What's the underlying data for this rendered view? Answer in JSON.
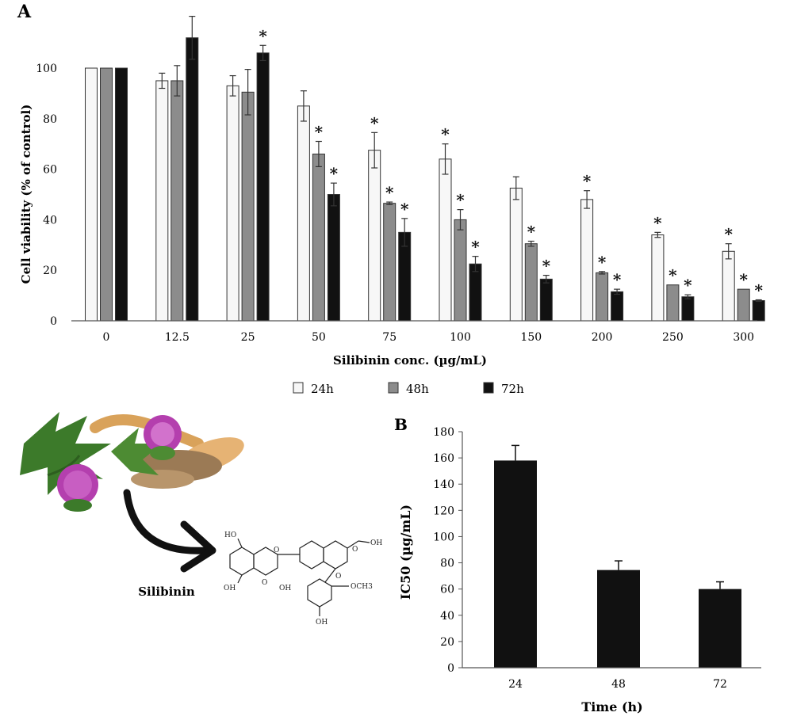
{
  "panels": {
    "a_label": "A",
    "b_label": "B"
  },
  "colors": {
    "h24": "#f7f7f7",
    "h48": "#8c8c8c",
    "h72": "#111111",
    "axis": "#555555",
    "star": "#111111"
  },
  "chart_data": [
    {
      "id": "A",
      "type": "bar",
      "title": "",
      "xlabel": "Silibinin conc. (µg/mL)",
      "ylabel": "Cell viability (% of control)",
      "ylim": [
        0,
        120
      ],
      "yticks": [
        0,
        20,
        40,
        60,
        80,
        100
      ],
      "categories": [
        "0",
        "12.5",
        "25",
        "50",
        "75",
        "100",
        "150",
        "200",
        "250",
        "300"
      ],
      "grid": false,
      "legend_position": "bottom-center",
      "annotation_symbol": "*",
      "series": [
        {
          "name": "24h",
          "color": "#f7f7f7",
          "values": [
            100,
            95,
            93,
            85,
            67.5,
            64,
            52.5,
            48,
            34,
            27.5
          ],
          "errors": [
            0,
            3,
            4,
            6,
            7,
            6,
            4.5,
            3.5,
            1,
            3
          ],
          "significant": [
            false,
            false,
            false,
            false,
            true,
            true,
            false,
            true,
            true,
            true
          ]
        },
        {
          "name": "48h",
          "color": "#8c8c8c",
          "values": [
            100,
            95,
            90.5,
            66,
            46.5,
            40,
            30.5,
            19,
            14.2,
            12.5
          ],
          "errors": [
            0,
            6,
            9,
            5,
            0.5,
            4,
            1,
            0.5,
            0,
            0
          ],
          "significant": [
            false,
            false,
            false,
            true,
            true,
            true,
            true,
            true,
            true,
            true
          ]
        },
        {
          "name": "72h",
          "color": "#111111",
          "values": [
            100,
            112,
            106,
            50,
            35,
            22.5,
            16.5,
            11.5,
            9.5,
            8
          ],
          "errors": [
            0,
            8.5,
            3,
            4.5,
            5.5,
            3,
            1.5,
            1,
            0.8,
            0.3
          ],
          "significant": [
            false,
            false,
            true,
            true,
            true,
            true,
            true,
            true,
            true,
            true
          ]
        }
      ]
    },
    {
      "id": "B",
      "type": "bar",
      "title": "",
      "xlabel": "Time (h)",
      "ylabel": "IC50 (µg/mL)",
      "ylim": [
        0,
        180
      ],
      "yticks": [
        0,
        20,
        40,
        60,
        80,
        100,
        120,
        140,
        160,
        180
      ],
      "categories": [
        "24",
        "48",
        "72"
      ],
      "grid": false,
      "series": [
        {
          "color": "#111111",
          "values": [
            158,
            74.5,
            60
          ],
          "errors": [
            11.5,
            7,
            5.5
          ]
        }
      ]
    }
  ],
  "illustration": {
    "compound_label": "Silibinin",
    "chem_labels": [
      "HO",
      "OH",
      "OH",
      "O",
      "O",
      "O",
      "O",
      "OH",
      "OH",
      "OCH3"
    ]
  }
}
